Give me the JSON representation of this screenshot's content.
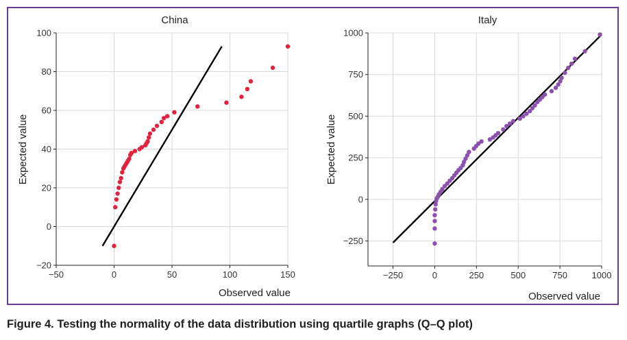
{
  "caption": "Figure 4. Testing the normality of the data distribution using quartile graphs (Q–Q plot)",
  "colors": {
    "frame": "#6b3b94",
    "china_points": "#e0233e",
    "italy_points": "#8a52ad",
    "line": "#000000",
    "grid": "#d9d9d9"
  },
  "chart_data": [
    {
      "type": "scatter",
      "title": "China",
      "xlabel": "Observed value",
      "ylabel": "Expected value",
      "xlim": [
        -50,
        150
      ],
      "ylim": [
        -20,
        100
      ],
      "xticks": [
        -50,
        0,
        50,
        100,
        150
      ],
      "xtick_labels": [
        "−50",
        "0",
        "50",
        "100",
        "150"
      ],
      "yticks": [
        -20,
        0,
        20,
        40,
        60,
        80,
        100
      ],
      "ytick_labels": [
        "−20",
        "0",
        "20",
        "40",
        "60",
        "80",
        "100"
      ],
      "grid": true,
      "reference_line": [
        [
          -10,
          -10
        ],
        [
          93,
          93
        ]
      ],
      "points": [
        [
          0,
          -10
        ],
        [
          1,
          10
        ],
        [
          2,
          14
        ],
        [
          3,
          17
        ],
        [
          4,
          20
        ],
        [
          5,
          23
        ],
        [
          6,
          25
        ],
        [
          7,
          28
        ],
        [
          8,
          30
        ],
        [
          9,
          31
        ],
        [
          10,
          32
        ],
        [
          11,
          33
        ],
        [
          12,
          34
        ],
        [
          13,
          35
        ],
        [
          14,
          37
        ],
        [
          15,
          38
        ],
        [
          18,
          39
        ],
        [
          22,
          40
        ],
        [
          24,
          41
        ],
        [
          27,
          42
        ],
        [
          28,
          43
        ],
        [
          29,
          44
        ],
        [
          30,
          46
        ],
        [
          31,
          48
        ],
        [
          34,
          50
        ],
        [
          37,
          52
        ],
        [
          41,
          54
        ],
        [
          43,
          56
        ],
        [
          46,
          57
        ],
        [
          52,
          59
        ],
        [
          72,
          62
        ],
        [
          97,
          64
        ],
        [
          110,
          67
        ],
        [
          115,
          71
        ],
        [
          118,
          75
        ],
        [
          137,
          82
        ],
        [
          150,
          93
        ]
      ]
    },
    {
      "type": "scatter",
      "title": "Italy",
      "xlabel": "Observed value",
      "ylabel": "Expected value",
      "xlim": [
        -400,
        1000
      ],
      "ylim": [
        -400,
        1000
      ],
      "xticks": [
        -250,
        0,
        250,
        500,
        750,
        1000
      ],
      "xtick_labels": [
        "−250",
        "0",
        "250",
        "500",
        "750",
        "1000"
      ],
      "yticks": [
        -250,
        0,
        250,
        500,
        750,
        1000
      ],
      "ytick_labels": [
        "−250",
        "0",
        "250",
        "500",
        "750",
        "1000"
      ],
      "grid": true,
      "reference_line": [
        [
          -250,
          -260
        ],
        [
          1000,
          990
        ]
      ],
      "points": [
        [
          0,
          -265
        ],
        [
          0,
          -175
        ],
        [
          0,
          -130
        ],
        [
          0,
          -95
        ],
        [
          3,
          -60
        ],
        [
          5,
          -30
        ],
        [
          8,
          -10
        ],
        [
          12,
          5
        ],
        [
          18,
          15
        ],
        [
          25,
          30
        ],
        [
          35,
          45
        ],
        [
          45,
          62
        ],
        [
          60,
          80
        ],
        [
          75,
          95
        ],
        [
          90,
          112
        ],
        [
          105,
          128
        ],
        [
          118,
          145
        ],
        [
          130,
          160
        ],
        [
          142,
          175
        ],
        [
          155,
          188
        ],
        [
          168,
          205
        ],
        [
          175,
          225
        ],
        [
          185,
          245
        ],
        [
          195,
          265
        ],
        [
          205,
          285
        ],
        [
          235,
          305
        ],
        [
          248,
          320
        ],
        [
          262,
          335
        ],
        [
          280,
          348
        ],
        [
          330,
          360
        ],
        [
          350,
          372
        ],
        [
          365,
          385
        ],
        [
          380,
          398
        ],
        [
          410,
          420
        ],
        [
          430,
          440
        ],
        [
          450,
          455
        ],
        [
          470,
          470
        ],
        [
          510,
          485
        ],
        [
          530,
          500
        ],
        [
          550,
          515
        ],
        [
          570,
          530
        ],
        [
          585,
          548
        ],
        [
          600,
          565
        ],
        [
          615,
          585
        ],
        [
          630,
          600
        ],
        [
          645,
          615
        ],
        [
          660,
          630
        ],
        [
          700,
          650
        ],
        [
          725,
          670
        ],
        [
          740,
          690
        ],
        [
          752,
          710
        ],
        [
          760,
          730
        ],
        [
          780,
          760
        ],
        [
          800,
          790
        ],
        [
          820,
          815
        ],
        [
          840,
          845
        ],
        [
          900,
          890
        ],
        [
          990,
          990
        ]
      ]
    }
  ]
}
